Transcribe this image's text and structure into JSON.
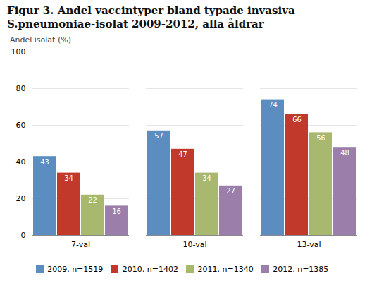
{
  "chart_data": {
    "type": "bar",
    "title": "Figur 3. Andel vaccintyper bland typade invasiva",
    "subtitle": "S.pneumoniae-isolat 2009-2012, alla åldrar",
    "ylabel": "Andel isolat (%)",
    "categories": [
      "7-val",
      "10-val",
      "13-val"
    ],
    "series": [
      {
        "name": "2009, n=1519",
        "color": "#5b8dc0",
        "values": [
          43,
          57,
          74
        ]
      },
      {
        "name": "2010, n=1402",
        "color": "#c0392b",
        "values": [
          34,
          47,
          66
        ]
      },
      {
        "name": "2011, n=1340",
        "color": "#a8b86e",
        "values": [
          22,
          34,
          56
        ]
      },
      {
        "name": "2012, n=1385",
        "color": "#9b7faa",
        "values": [
          16,
          27,
          48
        ]
      }
    ],
    "ylim": [
      0,
      100
    ],
    "yticks": [
      0,
      20,
      40,
      60,
      80,
      100
    ],
    "grid": true,
    "legend": "bottom",
    "data_labels": true
  }
}
